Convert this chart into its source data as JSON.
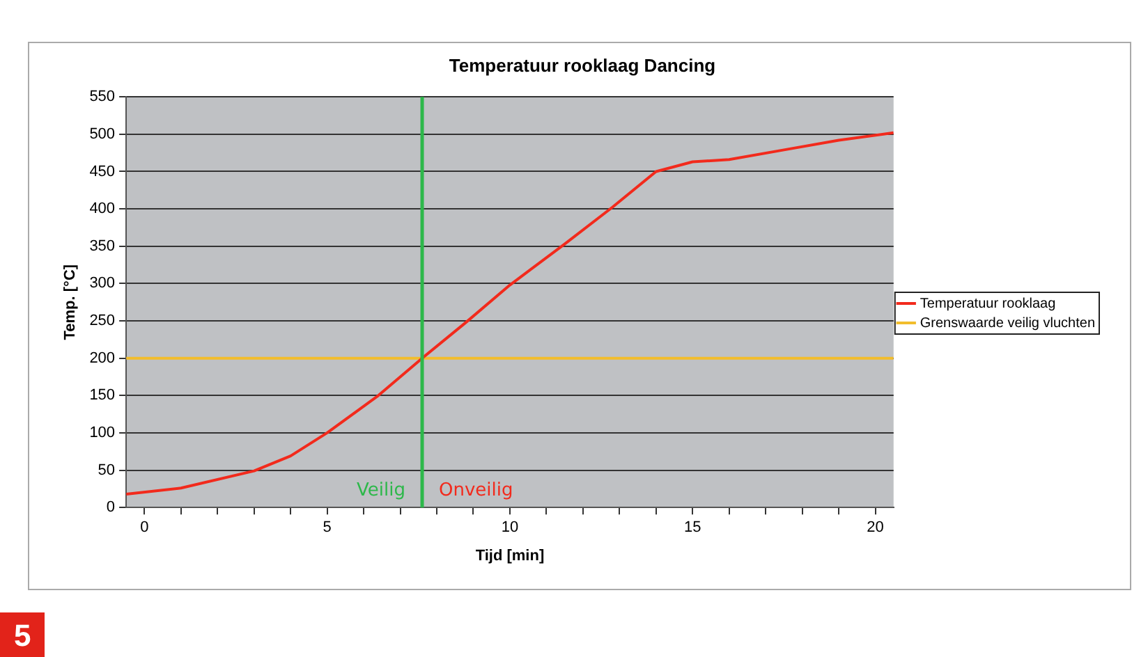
{
  "chart_data": {
    "type": "line",
    "title": "Temperatuur rooklaag Dancing",
    "xlabel": "Tijd [min]",
    "ylabel": "Temp. [°C]",
    "xlim": [
      -0.5,
      20.5
    ],
    "xticks": [
      0,
      {
        "value": 1,
        "label": null
      },
      {
        "value": 2,
        "label": null
      },
      {
        "value": 3,
        "label": null
      },
      {
        "value": 4,
        "label": null
      },
      5,
      {
        "value": 6,
        "label": null
      },
      {
        "value": 7,
        "label": null
      },
      {
        "value": 8,
        "label": null
      },
      {
        "value": 9,
        "label": null
      },
      10,
      {
        "value": 11,
        "label": null
      },
      {
        "value": 12,
        "label": null
      },
      {
        "value": 13,
        "label": null
      },
      {
        "value": 14,
        "label": null
      },
      15,
      {
        "value": 16,
        "label": null
      },
      {
        "value": 17,
        "label": null
      },
      {
        "value": 18,
        "label": null
      },
      {
        "value": 19,
        "label": null
      },
      20
    ],
    "ylim": [
      0,
      550
    ],
    "yticks": [
      0,
      50,
      100,
      150,
      200,
      250,
      300,
      350,
      400,
      450,
      500,
      550
    ],
    "grid": "y",
    "legend": "right",
    "marker": "none",
    "line_style": "solid",
    "series": [
      {
        "name": "Temperatuur rooklaag",
        "color": "#f22a1c",
        "x": [
          -0.5,
          1,
          3,
          4,
          5,
          6.4,
          7.6,
          8.8,
          10,
          11.5,
          12.8,
          14,
          15,
          16,
          17.5,
          19,
          20.5
        ],
        "values": [
          18,
          26,
          49,
          69,
          100,
          150,
          200,
          248,
          298,
          353,
          402,
          450,
          463,
          466,
          479,
          492,
          502
        ]
      },
      {
        "name": "Grenswaarde veilig vluchten",
        "color": "#f2bd2c",
        "x": [
          -0.5,
          20.5
        ],
        "values": [
          200,
          200
        ]
      }
    ],
    "ref_lines": [
      {
        "axis": "x",
        "value": 7.6,
        "color": "#2db84a"
      }
    ],
    "annotations": [
      "Veilig",
      "Onveilig",
      "5"
    ]
  }
}
